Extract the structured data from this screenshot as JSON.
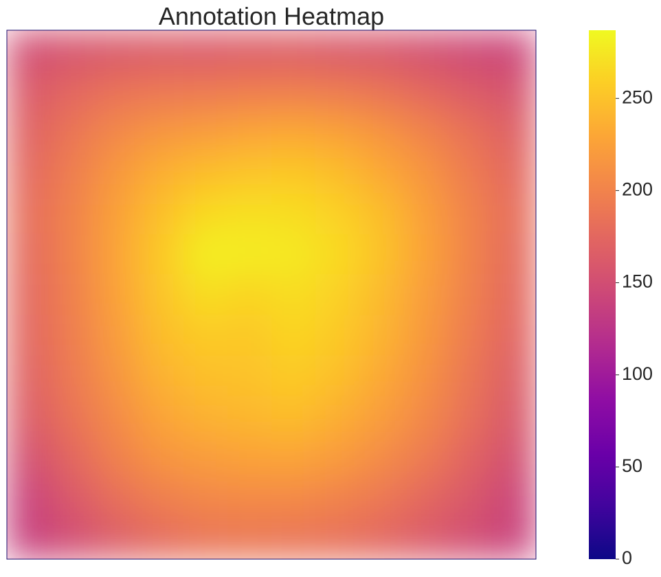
{
  "chart_data": {
    "type": "heatmap",
    "title": "Annotation Heatmap",
    "xlabel": "",
    "ylabel": "",
    "colormap": "plasma",
    "vmin": 0,
    "vmax": 287,
    "colorbar_ticks": [
      0,
      50,
      100,
      150,
      200,
      250
    ],
    "colorbar_tick_labels": [
      "0",
      "50",
      "100",
      "150",
      "200",
      "250"
    ],
    "grid": false,
    "matrix": [
      [
        150,
        156,
        160,
        163,
        162,
        164,
        165,
        160,
        158,
        152,
        145,
        142
      ],
      [
        162,
        175,
        185,
        190,
        192,
        195,
        196,
        193,
        186,
        176,
        164,
        156
      ],
      [
        170,
        188,
        205,
        216,
        222,
        228,
        230,
        225,
        214,
        200,
        184,
        168
      ],
      [
        176,
        196,
        218,
        236,
        246,
        252,
        253,
        246,
        232,
        214,
        194,
        176
      ],
      [
        180,
        200,
        225,
        248,
        266,
        270,
        268,
        260,
        246,
        224,
        200,
        180
      ],
      [
        178,
        200,
        228,
        255,
        280,
        278,
        276,
        266,
        250,
        226,
        200,
        178
      ],
      [
        176,
        198,
        226,
        252,
        268,
        262,
        268,
        260,
        244,
        222,
        198,
        176
      ],
      [
        174,
        196,
        222,
        246,
        256,
        254,
        262,
        255,
        240,
        218,
        194,
        172
      ],
      [
        170,
        192,
        216,
        238,
        248,
        250,
        256,
        248,
        232,
        212,
        188,
        166
      ],
      [
        164,
        186,
        208,
        228,
        238,
        242,
        246,
        236,
        222,
        204,
        182,
        160
      ],
      [
        152,
        176,
        198,
        214,
        222,
        226,
        228,
        220,
        208,
        192,
        172,
        152
      ],
      [
        140,
        162,
        182,
        196,
        204,
        206,
        206,
        200,
        190,
        176,
        160,
        142
      ],
      [
        138,
        150,
        166,
        178,
        186,
        188,
        186,
        182,
        174,
        162,
        150,
        140
      ]
    ]
  }
}
